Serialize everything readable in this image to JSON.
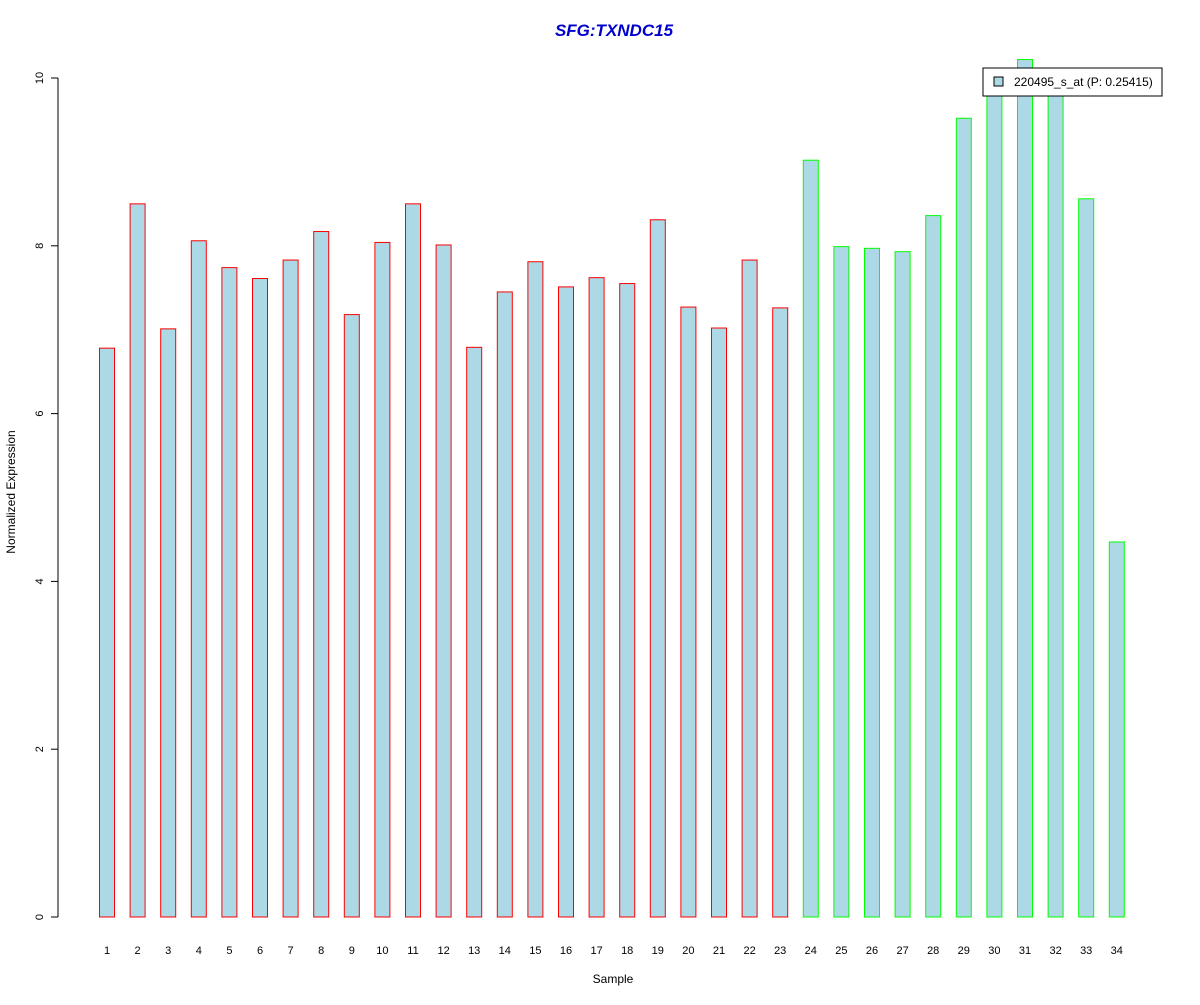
{
  "chart_data": {
    "type": "bar",
    "title": "SFG:TXNDC15",
    "xlabel": "Sample",
    "ylabel": "Normalized Expression",
    "ylim": [
      0,
      10
    ],
    "yticks": [
      "0",
      "2",
      "4",
      "6",
      "8",
      "10"
    ],
    "categories": [
      "1",
      "2",
      "3",
      "4",
      "5",
      "6",
      "7",
      "8",
      "9",
      "10",
      "11",
      "12",
      "13",
      "14",
      "15",
      "16",
      "17",
      "18",
      "19",
      "20",
      "21",
      "22",
      "23",
      "24",
      "25",
      "26",
      "27",
      "28",
      "29",
      "30",
      "31",
      "32",
      "33",
      "34"
    ],
    "series": [
      {
        "name": "220495_s_at (P: 0.25415)",
        "values": [
          6.78,
          8.5,
          7.01,
          8.06,
          7.74,
          7.61,
          7.83,
          8.17,
          7.18,
          8.04,
          8.5,
          8.01,
          6.79,
          7.45,
          7.81,
          7.51,
          7.62,
          7.55,
          8.31,
          7.27,
          7.02,
          7.83,
          7.26,
          9.02,
          7.99,
          7.97,
          7.93,
          8.36,
          9.52,
          9.87,
          10.22,
          9.85,
          8.56,
          4.47
        ]
      }
    ],
    "group_of_sample": [
      1,
      1,
      1,
      1,
      1,
      1,
      1,
      1,
      1,
      1,
      1,
      1,
      1,
      1,
      1,
      1,
      1,
      1,
      1,
      1,
      1,
      1,
      1,
      2,
      2,
      2,
      2,
      2,
      2,
      2,
      2,
      2,
      2,
      2
    ],
    "legend_position": "top-right",
    "grid": false,
    "colors": {
      "bar_fill": "#add8e6",
      "group1_border": "#ff0000",
      "group2_border": "#00ff00",
      "title": "#0000cc",
      "axis": "#000000"
    }
  }
}
